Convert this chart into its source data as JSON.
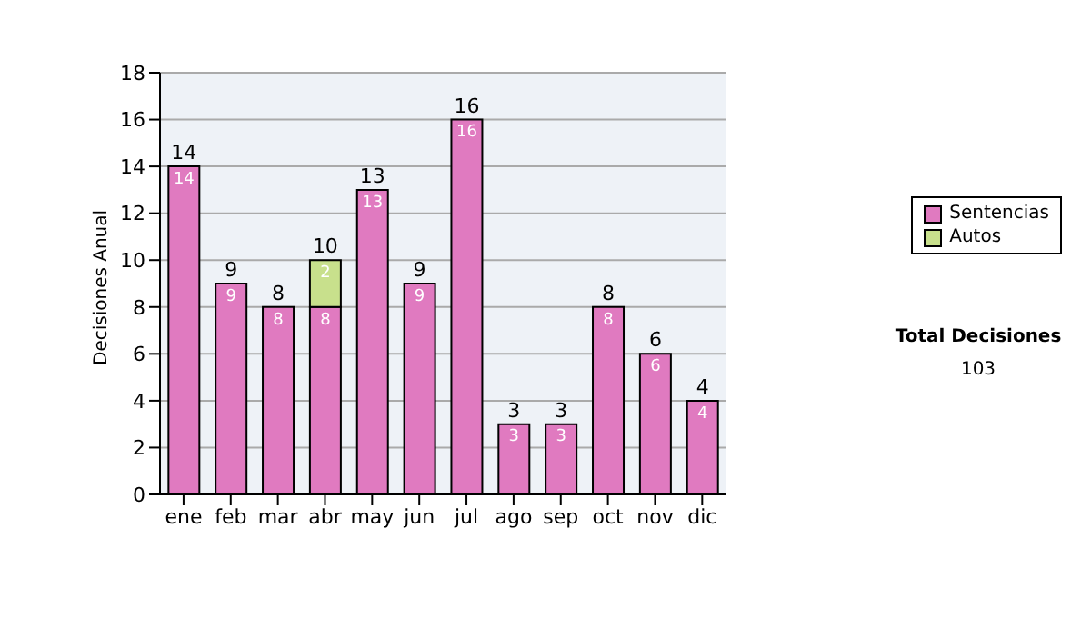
{
  "chart_data": {
    "type": "bar",
    "stacked": true,
    "ylabel": "Decisiones Anual",
    "categories": [
      "ene",
      "feb",
      "mar",
      "abr",
      "may",
      "jun",
      "jul",
      "ago",
      "sep",
      "oct",
      "nov",
      "dic"
    ],
    "series": [
      {
        "name": "Sentencias",
        "color": "#e07ac0",
        "values": [
          14,
          9,
          8,
          8,
          13,
          9,
          16,
          3,
          3,
          8,
          6,
          4
        ]
      },
      {
        "name": "Autos",
        "color": "#c8e08c",
        "values": [
          null,
          null,
          null,
          2,
          null,
          null,
          null,
          null,
          null,
          null,
          null,
          null
        ]
      }
    ],
    "ylim": [
      0,
      18
    ],
    "yticks": [
      0,
      2,
      4,
      6,
      8,
      10,
      12,
      14,
      16,
      18
    ],
    "grid": "y",
    "legend": "right",
    "data_labels": true,
    "totals": [
      "14",
      "9",
      "8",
      "10",
      "13",
      "9",
      "16",
      "3",
      "3",
      "8",
      "6",
      "4"
    ],
    "annotations": [
      "Total Decisiones",
      "103"
    ]
  }
}
